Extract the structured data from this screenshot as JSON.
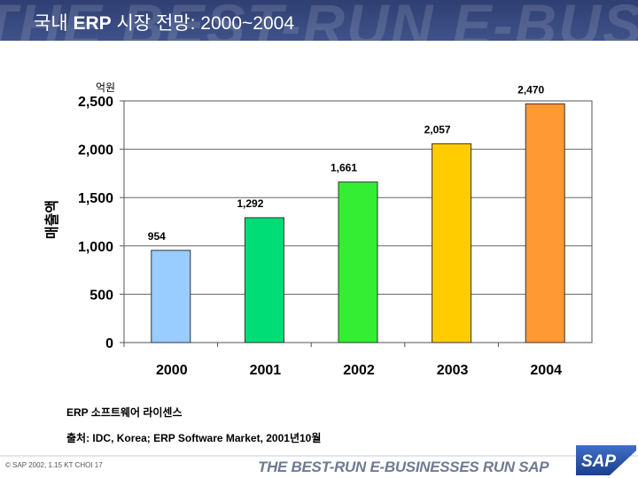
{
  "header": {
    "title_prefix": "국내",
    "title_bold": "ERP",
    "title_suffix": "시장 전망: 2000~2004",
    "watermark": "THE BEST-RUN E-BUS"
  },
  "chart_data": {
    "type": "bar",
    "unit_label": "억원",
    "ylabel": "매출액",
    "categories": [
      "2000",
      "2001",
      "2002",
      "2003",
      "2004"
    ],
    "values": [
      954,
      1292,
      1661,
      2057,
      2470
    ],
    "data_labels": [
      "954",
      "1,292",
      "1,661",
      "2,057",
      "2,470"
    ],
    "bar_colors": [
      "#99ccff",
      "#00dd77",
      "#33ee33",
      "#ffcc00",
      "#ff9933"
    ],
    "ylim": [
      0,
      2500
    ],
    "yticks": [
      0,
      500,
      1000,
      1500,
      2000,
      2500
    ],
    "ytick_labels": [
      "0",
      "500",
      "1,000",
      "1,500",
      "2,000",
      "2,500"
    ],
    "grid": true,
    "legend": "none"
  },
  "footnotes": {
    "line1": "ERP 소프트웨어 라이센스",
    "line2": "출처:  IDC, Korea;  ERP Software Market, 2001년10월"
  },
  "footer": {
    "copyright": "© SAP 2002, 1.15 KT CHOI  17",
    "slogan": "THE BEST-RUN E-BUSINESSES RUN SAP",
    "logo_text": "SAP"
  }
}
